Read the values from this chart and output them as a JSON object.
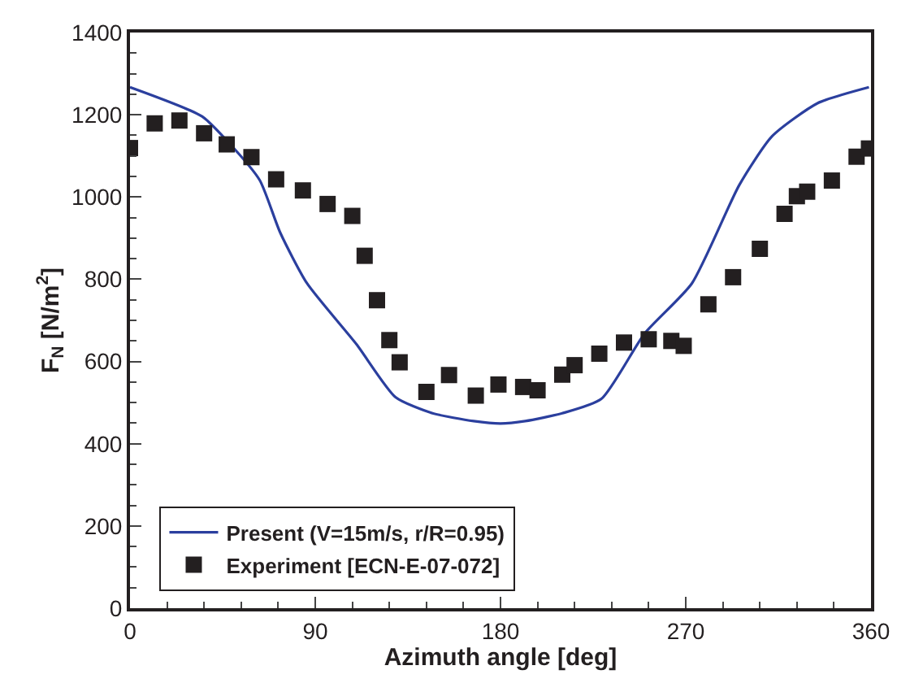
{
  "chart_data": {
    "type": "line",
    "xlabel": "Azimuth angle [deg]",
    "ylabel": "F$_{N}$ [N/m$^{2}$]",
    "xlim": [
      0,
      360
    ],
    "xticks": [
      0,
      90,
      180,
      270,
      360
    ],
    "ylim": [
      0,
      1400
    ],
    "yticks": [
      0,
      200,
      400,
      600,
      800,
      1000,
      1200,
      1400
    ],
    "legend": "bottom left",
    "series": [
      {
        "name": "Present (V=15m/s, r/R=0.95)",
        "color": "#2b3f9e",
        "marker": "none",
        "line_style": "solid",
        "x": [
          0,
          35,
          48,
          63,
          73,
          86,
          110,
          129,
          147,
          167,
          180,
          192,
          210,
          229,
          250,
          273,
          296,
          312,
          334,
          359
        ],
        "values": [
          1267,
          1196,
          1132,
          1041,
          913,
          790,
          642,
          513,
          474,
          455,
          449,
          455,
          474,
          509,
          668,
          790,
          1029,
          1148,
          1228,
          1267
        ]
      },
      {
        "name": "Experiment [ECN-E-07-072]",
        "type": "scatter",
        "color": "#231f20",
        "marker": "square",
        "x": [
          0,
          12,
          24,
          36,
          47,
          59,
          71,
          84,
          96,
          108,
          114,
          120,
          126,
          131,
          144,
          155,
          168,
          179,
          191,
          198,
          210,
          216,
          228,
          240,
          252,
          263,
          269,
          281,
          293,
          306,
          318,
          324,
          329,
          341,
          353,
          359
        ],
        "values": [
          1119,
          1179,
          1186,
          1155,
          1128,
          1097,
          1043,
          1016,
          983,
          954,
          857,
          749,
          652,
          598,
          526,
          567,
          517,
          544,
          538,
          530,
          568,
          591,
          619,
          646,
          654,
          650,
          638,
          739,
          805,
          874,
          959,
          1002,
          1013,
          1040,
          1098,
          1118
        ]
      }
    ]
  }
}
